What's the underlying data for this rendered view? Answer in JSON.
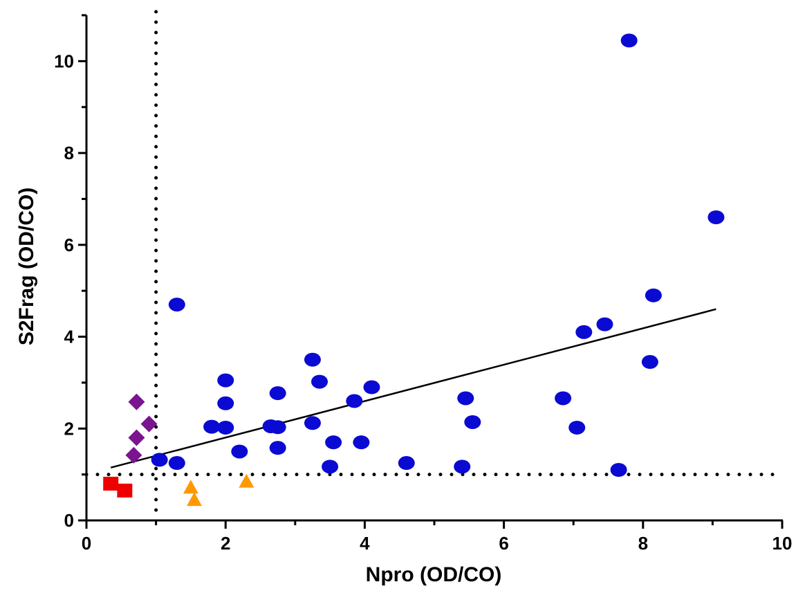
{
  "chart_data": {
    "type": "scatter",
    "title": "",
    "xlabel": "Npro (OD/CO)",
    "ylabel": "S2Frag (OD/CO)",
    "xlim": [
      0,
      10
    ],
    "ylim": [
      0,
      11
    ],
    "xticks": [
      0,
      2,
      4,
      6,
      8,
      10
    ],
    "yticks": [
      0,
      2,
      4,
      6,
      8,
      10
    ],
    "grid": false,
    "legend": "none",
    "cutoff_lines": {
      "x": 1,
      "y": 1,
      "style": "dotted"
    },
    "trend_line": {
      "x": [
        0.35,
        9.05
      ],
      "y": [
        1.15,
        4.6
      ]
    },
    "series": [
      {
        "marker": "circle",
        "color": "#0a0ad2",
        "points": [
          [
            7.8,
            10.45
          ],
          [
            9.05,
            6.6
          ],
          [
            8.15,
            4.9
          ],
          [
            1.3,
            4.7
          ],
          [
            7.45,
            4.27
          ],
          [
            7.15,
            4.1
          ],
          [
            8.1,
            3.45
          ],
          [
            3.25,
            3.5
          ],
          [
            3.35,
            3.02
          ],
          [
            2.0,
            3.05
          ],
          [
            4.1,
            2.9
          ],
          [
            2.75,
            2.77
          ],
          [
            2.0,
            2.55
          ],
          [
            3.85,
            2.6
          ],
          [
            5.45,
            2.66
          ],
          [
            6.85,
            2.66
          ],
          [
            5.55,
            2.14
          ],
          [
            3.25,
            2.12
          ],
          [
            1.8,
            2.04
          ],
          [
            2.0,
            2.02
          ],
          [
            2.65,
            2.05
          ],
          [
            2.75,
            2.03
          ],
          [
            7.05,
            2.02
          ],
          [
            3.55,
            1.7
          ],
          [
            3.95,
            1.7
          ],
          [
            2.2,
            1.5
          ],
          [
            2.75,
            1.58
          ],
          [
            1.05,
            1.32
          ],
          [
            1.3,
            1.25
          ],
          [
            4.6,
            1.25
          ],
          [
            3.5,
            1.17
          ],
          [
            5.4,
            1.17
          ],
          [
            7.65,
            1.1
          ]
        ]
      },
      {
        "marker": "diamond",
        "color": "#7a1490",
        "points": [
          [
            0.72,
            2.58
          ],
          [
            0.9,
            2.1
          ],
          [
            0.72,
            1.8
          ],
          [
            0.68,
            1.42
          ]
        ]
      },
      {
        "marker": "square",
        "color": "#ee0000",
        "points": [
          [
            0.35,
            0.8
          ],
          [
            0.55,
            0.65
          ]
        ]
      },
      {
        "marker": "triangle",
        "color": "#ff9900",
        "points": [
          [
            2.3,
            0.85
          ],
          [
            1.5,
            0.72
          ],
          [
            1.55,
            0.45
          ]
        ]
      }
    ]
  }
}
